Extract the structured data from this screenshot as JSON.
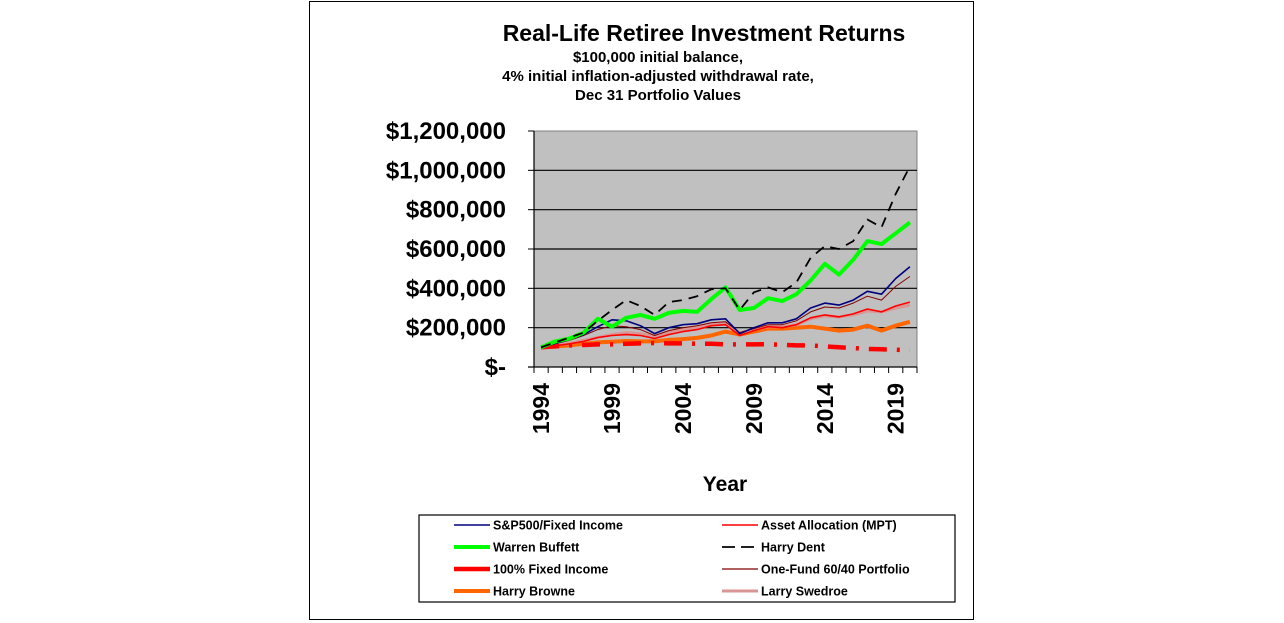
{
  "chart_data": {
    "type": "line",
    "title": "Real-Life Retiree Investment Returns",
    "subtitle_lines": [
      "$100,000 initial balance,",
      "4% initial inflation-adjusted withdrawal rate,",
      "Dec 31 Portfolio Values"
    ],
    "xlabel": "Year",
    "ylabel": "",
    "ylim": [
      0,
      1200000
    ],
    "yticks": [
      0,
      200000,
      400000,
      600000,
      800000,
      1000000,
      1200000
    ],
    "ytick_labels": [
      "$-",
      "$200,000",
      "$400,000",
      "$600,000",
      "$800,000",
      "$1,000,000",
      "$1,200,000"
    ],
    "xtick_labels": [
      "1994",
      "1999",
      "2004",
      "2009",
      "2014",
      "2019"
    ],
    "x": [
      1994,
      1995,
      1996,
      1997,
      1998,
      1999,
      2000,
      2001,
      2002,
      2003,
      2004,
      2005,
      2006,
      2007,
      2008,
      2009,
      2010,
      2011,
      2012,
      2013,
      2014,
      2015,
      2016,
      2017,
      2018,
      2019,
      2020
    ],
    "grid": true,
    "plot_background": "#c0c0c0",
    "legend_position": "bottom",
    "series": [
      {
        "name": "S&P500/Fixed Income",
        "color": "#000080",
        "width": 1.6,
        "dash": "",
        "values": [
          100000,
          120000,
          140000,
          165000,
          205000,
          240000,
          235000,
          210000,
          170000,
          200000,
          215000,
          220000,
          240000,
          245000,
          170000,
          200000,
          225000,
          225000,
          245000,
          300000,
          325000,
          315000,
          340000,
          385000,
          370000,
          450000,
          510000
        ]
      },
      {
        "name": "Asset Allocation (MPT)",
        "color": "#ff0000",
        "width": 1.6,
        "dash": "",
        "values": [
          100000,
          108000,
          118000,
          130000,
          150000,
          160000,
          165000,
          160000,
          145000,
          165000,
          180000,
          190000,
          210000,
          215000,
          160000,
          185000,
          205000,
          200000,
          215000,
          250000,
          265000,
          255000,
          270000,
          295000,
          280000,
          310000,
          330000
        ]
      },
      {
        "name": "Warren Buffett",
        "color": "#00ff00",
        "width": 4,
        "dash": "",
        "values": [
          100000,
          130000,
          145000,
          175000,
          245000,
          205000,
          250000,
          265000,
          245000,
          275000,
          285000,
          280000,
          345000,
          405000,
          290000,
          300000,
          350000,
          335000,
          370000,
          440000,
          525000,
          470000,
          545000,
          640000,
          625000,
          680000,
          735000
        ]
      },
      {
        "name": "Harry Dent",
        "color": "#000000",
        "width": 1.8,
        "dash": "10,7",
        "values": [
          100000,
          125000,
          150000,
          175000,
          235000,
          290000,
          340000,
          310000,
          265000,
          330000,
          340000,
          360000,
          395000,
          400000,
          290000,
          380000,
          405000,
          380000,
          430000,
          555000,
          615000,
          600000,
          640000,
          750000,
          710000,
          880000,
          1020000
        ]
      },
      {
        "name": "100% Fixed Income",
        "color": "#ff0000",
        "width": 4.5,
        "dash": "18,10,3,10",
        "values": [
          100000,
          105000,
          110000,
          112000,
          115000,
          115000,
          118000,
          120000,
          122000,
          120000,
          120000,
          118000,
          118000,
          115000,
          115000,
          115000,
          116000,
          113000,
          110000,
          110000,
          105000,
          100000,
          96000,
          92000,
          90000,
          88000,
          85000
        ]
      },
      {
        "name": "One-Fund 60/40 Portfolio",
        "color": "#800000",
        "width": 1,
        "dash": "",
        "values": [
          100000,
          118000,
          135000,
          160000,
          190000,
          210000,
          205000,
          190000,
          160000,
          185000,
          200000,
          210000,
          225000,
          230000,
          175000,
          195000,
          215000,
          215000,
          235000,
          280000,
          305000,
          300000,
          325000,
          360000,
          340000,
          410000,
          460000
        ]
      },
      {
        "name": "Harry Browne",
        "color": "#ff6600",
        "width": 4,
        "dash": "",
        "values": [
          100000,
          105000,
          110000,
          118000,
          125000,
          128000,
          132000,
          130000,
          130000,
          138000,
          142000,
          148000,
          160000,
          180000,
          165000,
          180000,
          195000,
          195000,
          200000,
          205000,
          195000,
          185000,
          190000,
          210000,
          185000,
          210000,
          230000
        ]
      },
      {
        "name": "Larry Swedroe",
        "color": "#d99694",
        "width": 3,
        "dash": "",
        "values": [
          100000,
          110000,
          120000,
          135000,
          150000,
          165000,
          175000,
          170000,
          155000,
          175000,
          190000,
          200000,
          215000,
          220000,
          175000,
          190000,
          205000,
          205000,
          215000,
          245000,
          260000,
          255000,
          265000,
          285000,
          280000,
          300000,
          315000
        ]
      }
    ],
    "legend_order": [
      [
        "S&P500/Fixed Income",
        "Asset Allocation (MPT)"
      ],
      [
        "Warren Buffett",
        "Harry Dent"
      ],
      [
        "100% Fixed Income",
        "One-Fund 60/40 Portfolio"
      ],
      [
        "Harry Browne",
        "Larry Swedroe"
      ]
    ]
  }
}
